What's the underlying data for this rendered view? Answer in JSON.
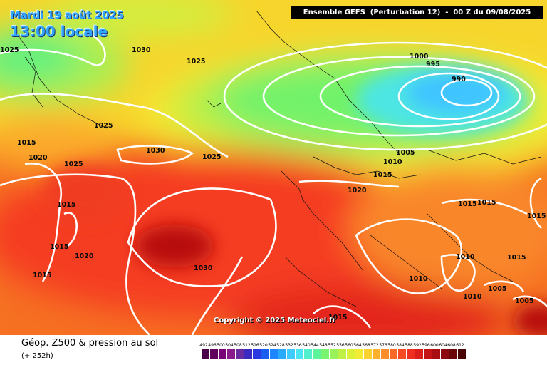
{
  "header": {
    "date_line": "Mardi 19 août 2025",
    "time_line": "13:00 locale",
    "run_info": "Ensemble GEFS  (Perturbation 12)  -  00 Z du 09/08/2025"
  },
  "map": {
    "copyright": "Copyright © 2025 Meteociel.fr",
    "isobar_labels": [
      "1025",
      "1030",
      "1025",
      "1000",
      "995",
      "990",
      "1025",
      "1015",
      "1020",
      "1025",
      "1030",
      "1025",
      "1005",
      "1010",
      "1015",
      "1020",
      "1015",
      "1015",
      "1015",
      "1020",
      "1030",
      "1015",
      "1010",
      "1010",
      "1010",
      "1005",
      "1005",
      "1015",
      "1015",
      "1015",
      "1015"
    ]
  },
  "footer": {
    "title": "Géop. Z500 & pression au sol",
    "lead_time": "(+ 252h)",
    "scale_values": [
      "492",
      "496",
      "500",
      "504",
      "508",
      "512",
      "516",
      "520",
      "524",
      "528",
      "532",
      "536",
      "540",
      "544",
      "548",
      "552",
      "556",
      "560",
      "564",
      "568",
      "572",
      "576",
      "580",
      "584",
      "588",
      "592",
      "596",
      "600",
      "604",
      "608",
      "612"
    ],
    "scale_colors": [
      "#4a0048",
      "#62005e",
      "#7a0078",
      "#8a1a8c",
      "#6a2aa0",
      "#3a2ac0",
      "#2a3ae0",
      "#1a5ef0",
      "#1e86ff",
      "#2aaaff",
      "#3ecbff",
      "#4ae4f2",
      "#50f0cc",
      "#5cf49a",
      "#78f470",
      "#9af25a",
      "#bff046",
      "#dcf038",
      "#f2ec34",
      "#fcd230",
      "#fcb02c",
      "#fb8c2a",
      "#f96a26",
      "#f54a22",
      "#ee2e1e",
      "#dc1e1a",
      "#c41416",
      "#a80e12",
      "#8c0a0e",
      "#6a060a",
      "#480404"
    ]
  }
}
